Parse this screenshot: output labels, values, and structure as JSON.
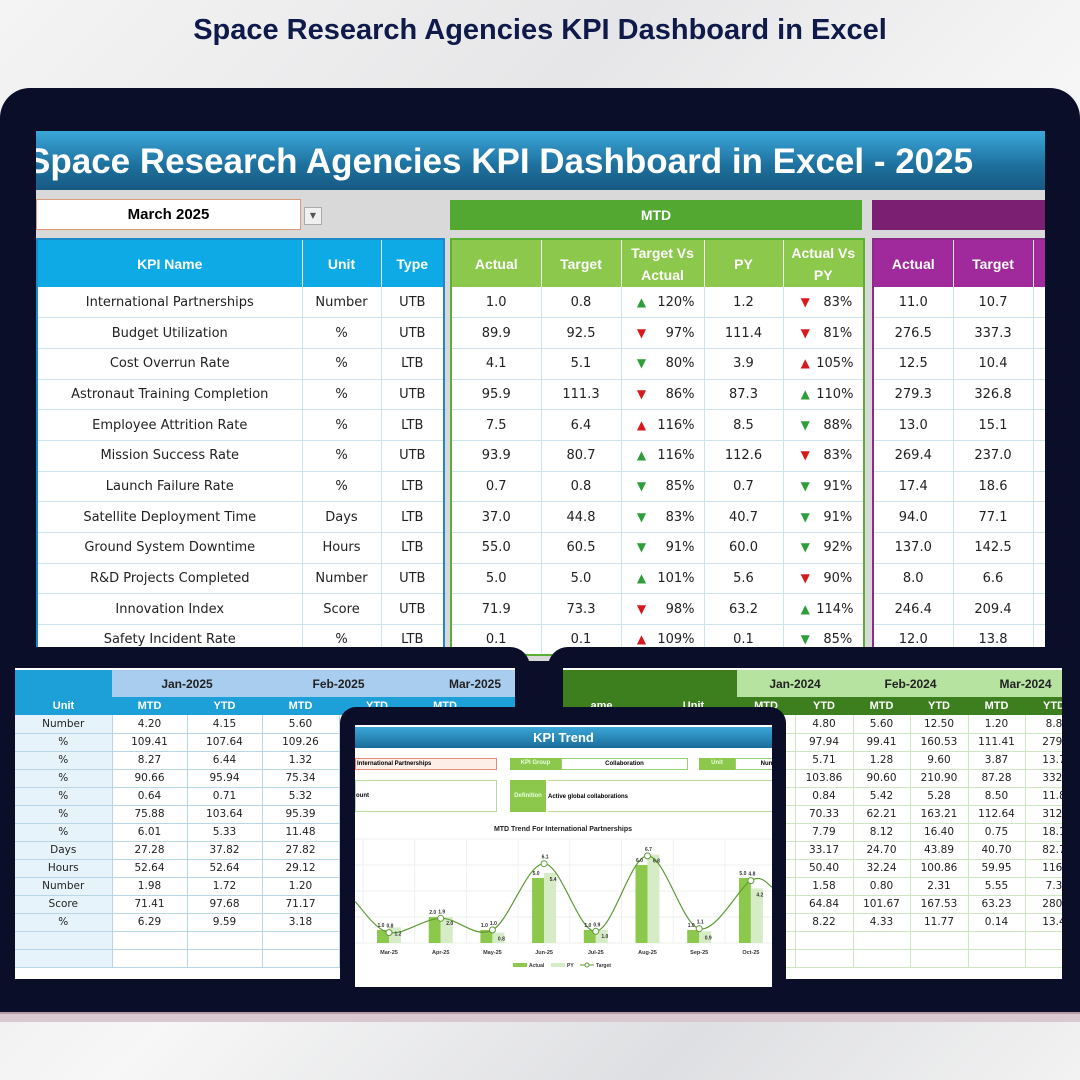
{
  "headline": "Space Research Agencies KPI Dashboard in Excel",
  "dashboard": {
    "banner": "Space Research Agencies KPI Dashboard in Excel - 2025",
    "month_selector": "March 2025",
    "mtd_label": "MTD",
    "ytd_label": "",
    "kpi_headers": [
      "KPI Name",
      "Unit",
      "Type"
    ],
    "mtd_headers": [
      "Actual",
      "Target",
      "Target Vs Actual",
      "PY",
      "Actual Vs PY"
    ],
    "ytd_headers": [
      "Actual",
      "Target"
    ],
    "colors": {
      "up_good": "#2e9e3a",
      "bad": "#d7191c",
      "mtd": "#5ab032",
      "ytd": "#7a1f72",
      "kpi": "#0eaae6"
    },
    "rows": [
      {
        "name": "International Partnerships",
        "unit": "Number",
        "type": "UTB",
        "actual": "1.0",
        "target": "0.8",
        "tva": "120%",
        "tva_icon": "up-green",
        "py": "1.2",
        "avp": "83%",
        "avp_icon": "down-red",
        "ytd_actual": "11.0",
        "ytd_target": "10.7"
      },
      {
        "name": "Budget Utilization",
        "unit": "%",
        "type": "UTB",
        "actual": "89.9",
        "target": "92.5",
        "tva": "97%",
        "tva_icon": "down-red",
        "py": "111.4",
        "avp": "81%",
        "avp_icon": "down-red",
        "ytd_actual": "276.5",
        "ytd_target": "337.3"
      },
      {
        "name": "Cost Overrun Rate",
        "unit": "%",
        "type": "LTB",
        "actual": "4.1",
        "target": "5.1",
        "tva": "80%",
        "tva_icon": "down-green",
        "py": "3.9",
        "avp": "105%",
        "avp_icon": "up-red",
        "ytd_actual": "12.5",
        "ytd_target": "10.4"
      },
      {
        "name": "Astronaut Training Completion",
        "unit": "%",
        "type": "UTB",
        "actual": "95.9",
        "target": "111.3",
        "tva": "86%",
        "tva_icon": "down-red",
        "py": "87.3",
        "avp": "110%",
        "avp_icon": "up-green",
        "ytd_actual": "279.3",
        "ytd_target": "326.8"
      },
      {
        "name": "Employee Attrition Rate",
        "unit": "%",
        "type": "LTB",
        "actual": "7.5",
        "target": "6.4",
        "tva": "116%",
        "tva_icon": "up-red",
        "py": "8.5",
        "avp": "88%",
        "avp_icon": "down-green",
        "ytd_actual": "13.0",
        "ytd_target": "15.1"
      },
      {
        "name": "Mission Success Rate",
        "unit": "%",
        "type": "UTB",
        "actual": "93.9",
        "target": "80.7",
        "tva": "116%",
        "tva_icon": "up-green",
        "py": "112.6",
        "avp": "83%",
        "avp_icon": "down-red",
        "ytd_actual": "269.4",
        "ytd_target": "237.0"
      },
      {
        "name": "Launch Failure Rate",
        "unit": "%",
        "type": "LTB",
        "actual": "0.7",
        "target": "0.8",
        "tva": "85%",
        "tva_icon": "down-green",
        "py": "0.7",
        "avp": "91%",
        "avp_icon": "down-green",
        "ytd_actual": "17.4",
        "ytd_target": "18.6"
      },
      {
        "name": "Satellite Deployment Time",
        "unit": "Days",
        "type": "LTB",
        "actual": "37.0",
        "target": "44.8",
        "tva": "83%",
        "tva_icon": "down-green",
        "py": "40.7",
        "avp": "91%",
        "avp_icon": "down-green",
        "ytd_actual": "94.0",
        "ytd_target": "77.1"
      },
      {
        "name": "Ground System Downtime",
        "unit": "Hours",
        "type": "LTB",
        "actual": "55.0",
        "target": "60.5",
        "tva": "91%",
        "tva_icon": "down-green",
        "py": "60.0",
        "avp": "92%",
        "avp_icon": "down-green",
        "ytd_actual": "137.0",
        "ytd_target": "142.5"
      },
      {
        "name": "R&D Projects Completed",
        "unit": "Number",
        "type": "UTB",
        "actual": "5.0",
        "target": "5.0",
        "tva": "101%",
        "tva_icon": "up-green",
        "py": "5.6",
        "avp": "90%",
        "avp_icon": "down-red",
        "ytd_actual": "8.0",
        "ytd_target": "6.6"
      },
      {
        "name": "Innovation Index",
        "unit": "Score",
        "type": "UTB",
        "actual": "71.9",
        "target": "73.3",
        "tva": "98%",
        "tva_icon": "down-red",
        "py": "63.2",
        "avp": "114%",
        "avp_icon": "up-green",
        "ytd_actual": "246.4",
        "ytd_target": "209.4"
      },
      {
        "name": "Safety Incident Rate",
        "unit": "%",
        "type": "LTB",
        "actual": "0.1",
        "target": "0.1",
        "tva": "109%",
        "tva_icon": "up-red",
        "py": "0.1",
        "avp": "85%",
        "avp_icon": "down-green",
        "ytd_actual": "12.0",
        "ytd_target": "13.8"
      }
    ]
  },
  "left_sheet": {
    "months": [
      "Jan-2025",
      "Feb-2025",
      "Mar-2025"
    ],
    "sub_headers": [
      "Unit",
      "MTD",
      "YTD",
      "MTD",
      "YTD",
      "MTD"
    ],
    "rows": [
      [
        "Number",
        "4.20",
        "4.15",
        "5.60"
      ],
      [
        "%",
        "109.41",
        "107.64",
        "109.26"
      ],
      [
        "%",
        "8.27",
        "6.44",
        "1.32"
      ],
      [
        "%",
        "90.66",
        "95.94",
        "75.34"
      ],
      [
        "%",
        "0.64",
        "0.71",
        "5.32"
      ],
      [
        "%",
        "75.88",
        "103.64",
        "95.39"
      ],
      [
        "%",
        "6.01",
        "5.33",
        "11.48"
      ],
      [
        "Days",
        "27.28",
        "37.82",
        "27.82"
      ],
      [
        "Hours",
        "52.64",
        "52.64",
        "29.12"
      ],
      [
        "Number",
        "1.98",
        "1.72",
        "1.20"
      ],
      [
        "Score",
        "71.41",
        "97.68",
        "71.17"
      ],
      [
        "%",
        "6.29",
        "9.59",
        "3.18"
      ]
    ]
  },
  "right_sheet": {
    "months": [
      "Jan-2024",
      "Feb-2024",
      "Mar-2024"
    ],
    "sub_headers": [
      "ame",
      "Unit",
      "MTD",
      "YTD",
      "MTD",
      "YTD",
      "MTD",
      "YTD"
    ],
    "rows": [
      [
        "4.80",
        "5.60",
        "12.50",
        "1.20",
        "8.8"
      ],
      [
        "97.94",
        "99.41",
        "160.53",
        "111.41",
        "279."
      ],
      [
        "5.71",
        "1.28",
        "9.60",
        "3.87",
        "13.7"
      ],
      [
        "103.86",
        "90.60",
        "210.90",
        "87.28",
        "332."
      ],
      [
        "0.84",
        "5.42",
        "5.28",
        "8.50",
        "11.8"
      ],
      [
        "70.33",
        "62.21",
        "163.21",
        "112.64",
        "312."
      ],
      [
        "7.79",
        "8.12",
        "16.40",
        "0.75",
        "18.1"
      ],
      [
        "33.17",
        "24.70",
        "43.89",
        "40.70",
        "82.7"
      ],
      [
        "50.40",
        "32.24",
        "100.86",
        "59.95",
        "116."
      ],
      [
        "1.58",
        "0.80",
        "2.31",
        "5.55",
        "7.3"
      ],
      [
        "64.84",
        "101.67",
        "167.53",
        "63.23",
        "280."
      ],
      [
        "8.22",
        "4.33",
        "11.77",
        "0.14",
        "13.4"
      ]
    ]
  },
  "kpi_trend": {
    "title": "KPI Trend",
    "kpi_name": "International Partnerships",
    "kpi_group_label": "KPI Group",
    "kpi_group": "Collaboration",
    "unit_label": "Unit",
    "unit": "Num",
    "formula": "ount",
    "definition_label": "Definition",
    "definition": "Active global collaborations"
  },
  "chart_data": {
    "type": "bar",
    "title": "MTD Trend For International Partnerships",
    "categories": [
      "Mar-25",
      "Apr-25",
      "May-25",
      "Jun-25",
      "Jul-25",
      "Aug-25",
      "Sep-25",
      "Oct-25"
    ],
    "series": [
      {
        "name": "Actual",
        "type": "bar",
        "color": "#8cc84b",
        "values": [
          1.0,
          2.0,
          1.0,
          5.0,
          1.0,
          6.0,
          1.0,
          5.0
        ]
      },
      {
        "name": "PY",
        "type": "bar",
        "color": "#d6ecc7",
        "values": [
          1.2,
          2.0,
          0.8,
          5.4,
          1.0,
          6.8,
          0.9,
          4.2
        ]
      },
      {
        "name": "Target",
        "type": "line",
        "color": "#5e9a35",
        "values": [
          0.8,
          1.9,
          1.0,
          6.1,
          0.9,
          6.7,
          1.1,
          4.8
        ]
      }
    ],
    "ylim": [
      0,
      8
    ],
    "grid": true,
    "legend": "bottom"
  }
}
